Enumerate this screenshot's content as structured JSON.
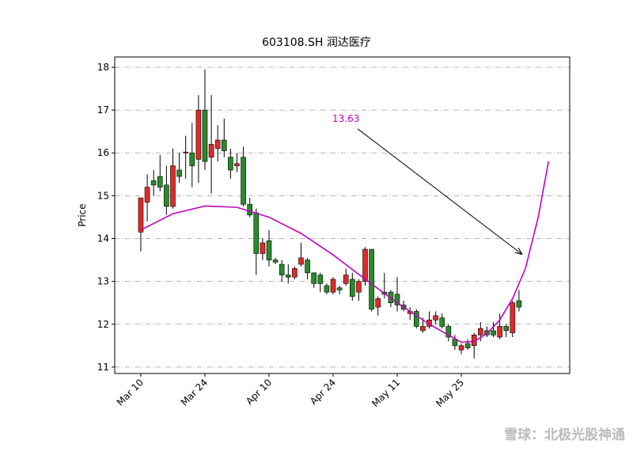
{
  "chart_data": {
    "type": "candlestick",
    "title": "603108.SH 润达医疗",
    "ylabel": "Price",
    "x": [
      0,
      1,
      2,
      3,
      4,
      5,
      6,
      7,
      8,
      9,
      10,
      11,
      12,
      13,
      14,
      15,
      16,
      17,
      18,
      19,
      20,
      21,
      22,
      23,
      24,
      25,
      26,
      27,
      28,
      29,
      30,
      31,
      32,
      33,
      34,
      35,
      36,
      37,
      38,
      39,
      40,
      41,
      42,
      43,
      44,
      45,
      46,
      47,
      48,
      49,
      50,
      51,
      52,
      53,
      54,
      55,
      56,
      57,
      58,
      59
    ],
    "open": [
      14.15,
      14.85,
      15.35,
      15.45,
      15.25,
      14.75,
      15.6,
      16.0,
      16.0,
      15.85,
      17.0,
      15.9,
      16.1,
      16.3,
      15.9,
      15.7,
      15.9,
      14.8,
      14.6,
      13.65,
      13.95,
      13.5,
      13.4,
      13.15,
      13.1,
      13.4,
      13.5,
      13.2,
      13.15,
      12.9,
      12.75,
      12.85,
      12.95,
      13.05,
      12.75,
      13.0,
      13.75,
      12.4,
      12.75,
      12.75,
      12.7,
      12.45,
      12.25,
      12.3,
      11.85,
      11.95,
      12.1,
      12.15,
      11.95,
      11.65,
      11.4,
      11.55,
      11.5,
      11.75,
      11.85,
      11.85,
      11.7,
      11.95,
      11.8,
      12.55
    ],
    "high": [
      14.95,
      15.5,
      15.6,
      15.95,
      15.7,
      16.1,
      16.0,
      16.4,
      16.7,
      17.35,
      17.95,
      17.35,
      16.65,
      16.8,
      16.1,
      16.0,
      16.15,
      14.95,
      14.7,
      14.0,
      14.2,
      13.55,
      13.5,
      13.4,
      13.35,
      13.9,
      13.55,
      13.2,
      13.2,
      12.95,
      13.1,
      12.9,
      13.3,
      13.2,
      13.05,
      13.8,
      13.75,
      12.65,
      13.2,
      12.8,
      13.1,
      12.55,
      12.4,
      12.35,
      12.15,
      12.3,
      12.3,
      12.25,
      12.0,
      11.75,
      11.55,
      11.65,
      11.8,
      12.05,
      11.95,
      12.05,
      12.25,
      12.0,
      12.55,
      12.8
    ],
    "low": [
      13.7,
      14.4,
      15.0,
      15.1,
      14.55,
      14.7,
      15.3,
      15.4,
      15.2,
      15.3,
      15.6,
      15.05,
      15.8,
      15.9,
      15.4,
      15.55,
      14.75,
      14.5,
      13.15,
      13.5,
      13.35,
      13.4,
      13.0,
      12.95,
      13.05,
      13.35,
      13.05,
      12.85,
      12.75,
      12.7,
      12.7,
      12.7,
      12.9,
      12.55,
      12.55,
      12.9,
      12.3,
      12.2,
      12.6,
      12.4,
      12.3,
      12.3,
      12.1,
      11.9,
      11.8,
      11.9,
      12.0,
      11.9,
      11.6,
      11.4,
      11.3,
      11.4,
      11.2,
      11.6,
      11.7,
      11.7,
      11.65,
      11.7,
      11.7,
      12.3
    ],
    "close": [
      14.95,
      15.2,
      15.25,
      15.2,
      14.75,
      15.7,
      15.45,
      16.02,
      15.7,
      17.0,
      15.8,
      16.2,
      16.3,
      16.05,
      15.6,
      15.75,
      14.8,
      14.55,
      13.65,
      13.9,
      13.5,
      13.45,
      13.15,
      13.1,
      13.3,
      13.55,
      13.2,
      12.95,
      12.95,
      12.75,
      13.05,
      12.8,
      13.15,
      12.65,
      13.0,
      13.75,
      12.35,
      12.6,
      12.7,
      12.5,
      12.45,
      12.35,
      12.3,
      11.95,
      11.95,
      12.1,
      12.2,
      11.95,
      11.7,
      11.5,
      11.5,
      11.45,
      11.75,
      11.9,
      11.75,
      11.75,
      11.95,
      11.85,
      12.5,
      12.4
    ],
    "up_color": "#e02a2a",
    "down_color": "#2a8a2a",
    "trend": {
      "color": "#c000c0",
      "x": [
        0,
        5,
        10,
        15,
        20,
        25,
        30,
        35,
        40,
        45,
        50,
        52,
        54,
        56,
        58,
        60,
        62,
        63.6
      ],
      "values": [
        14.2,
        14.58,
        14.76,
        14.73,
        14.5,
        14.12,
        13.62,
        13.05,
        12.5,
        12.0,
        11.58,
        11.6,
        11.78,
        12.1,
        12.6,
        13.3,
        14.5,
        15.8
      ]
    },
    "annotation": {
      "label": "13.63",
      "value": 13.63,
      "x": 59.5,
      "text_x": 32,
      "text_y": 16.8,
      "color": "#c000c0"
    },
    "xlim": [
      -4.07,
      66.91
    ],
    "ylim": [
      10.85,
      18.24
    ],
    "xticks": [
      {
        "value": 0,
        "label": "Mar 10"
      },
      {
        "value": 10,
        "label": "Mar 24"
      },
      {
        "value": 20,
        "label": "Apr 10"
      },
      {
        "value": 30,
        "label": "Apr 24"
      },
      {
        "value": 40,
        "label": "May 11"
      },
      {
        "value": 50,
        "label": "May 25"
      }
    ],
    "yticks": [
      11,
      12,
      13,
      14,
      15,
      16,
      17,
      18
    ],
    "grid": true
  },
  "watermark": "雪球：北极光股神通"
}
